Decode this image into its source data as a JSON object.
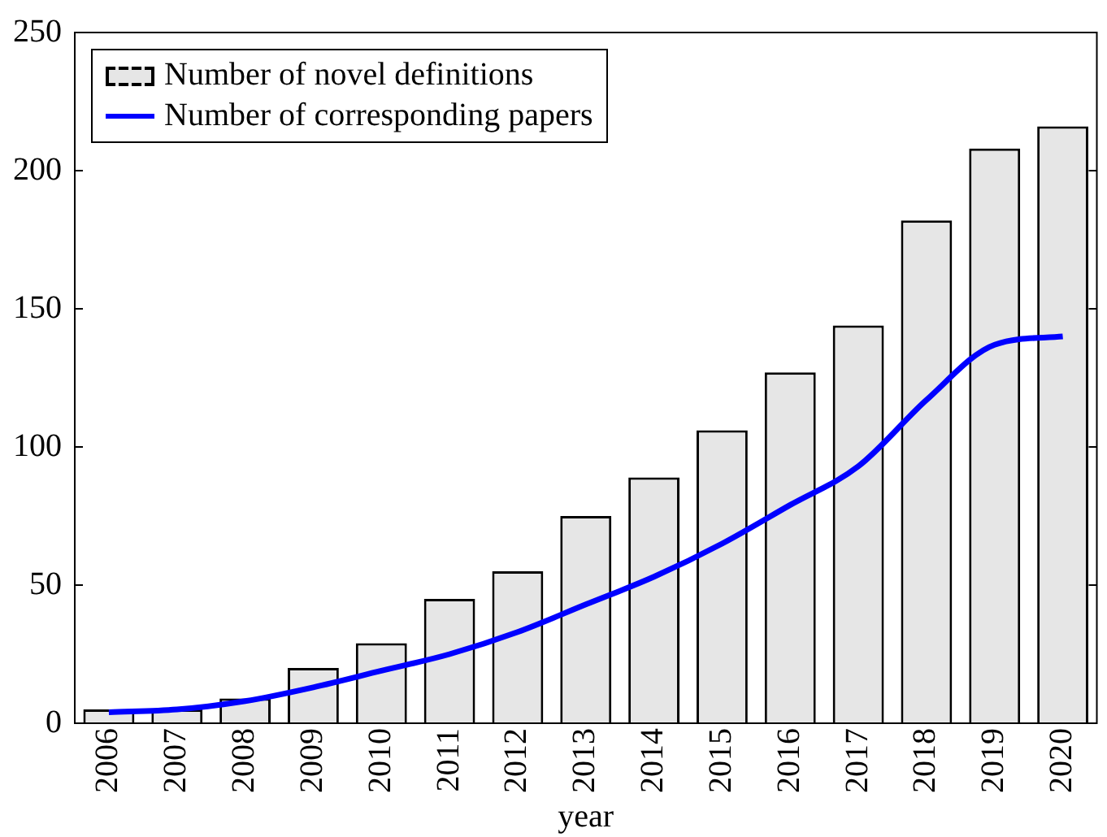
{
  "chart_data": {
    "type": "bar",
    "xlabel": "year",
    "categories": [
      "2006",
      "2007",
      "2008",
      "2009",
      "2010",
      "2011",
      "2012",
      "2013",
      "2014",
      "2015",
      "2016",
      "2017",
      "2018",
      "2019",
      "2020"
    ],
    "series": [
      {
        "name": "Number of novel definitions",
        "color": "#e6e6e6",
        "values": [
          5,
          5,
          9,
          20,
          29,
          45,
          55,
          75,
          89,
          106,
          127,
          144,
          182,
          208,
          216
        ]
      },
      {
        "name": "Number of corresponding papers",
        "type": "line",
        "color": "#0000ff",
        "values": [
          4,
          5,
          8,
          13,
          19,
          25,
          33,
          43,
          53,
          65,
          79,
          93,
          117,
          137,
          140
        ]
      }
    ],
    "ylim": [
      0,
      250
    ],
    "yticks": [
      0,
      50,
      100,
      150,
      200,
      250
    ],
    "grid": false,
    "legend": "top left",
    "marker": "none"
  }
}
